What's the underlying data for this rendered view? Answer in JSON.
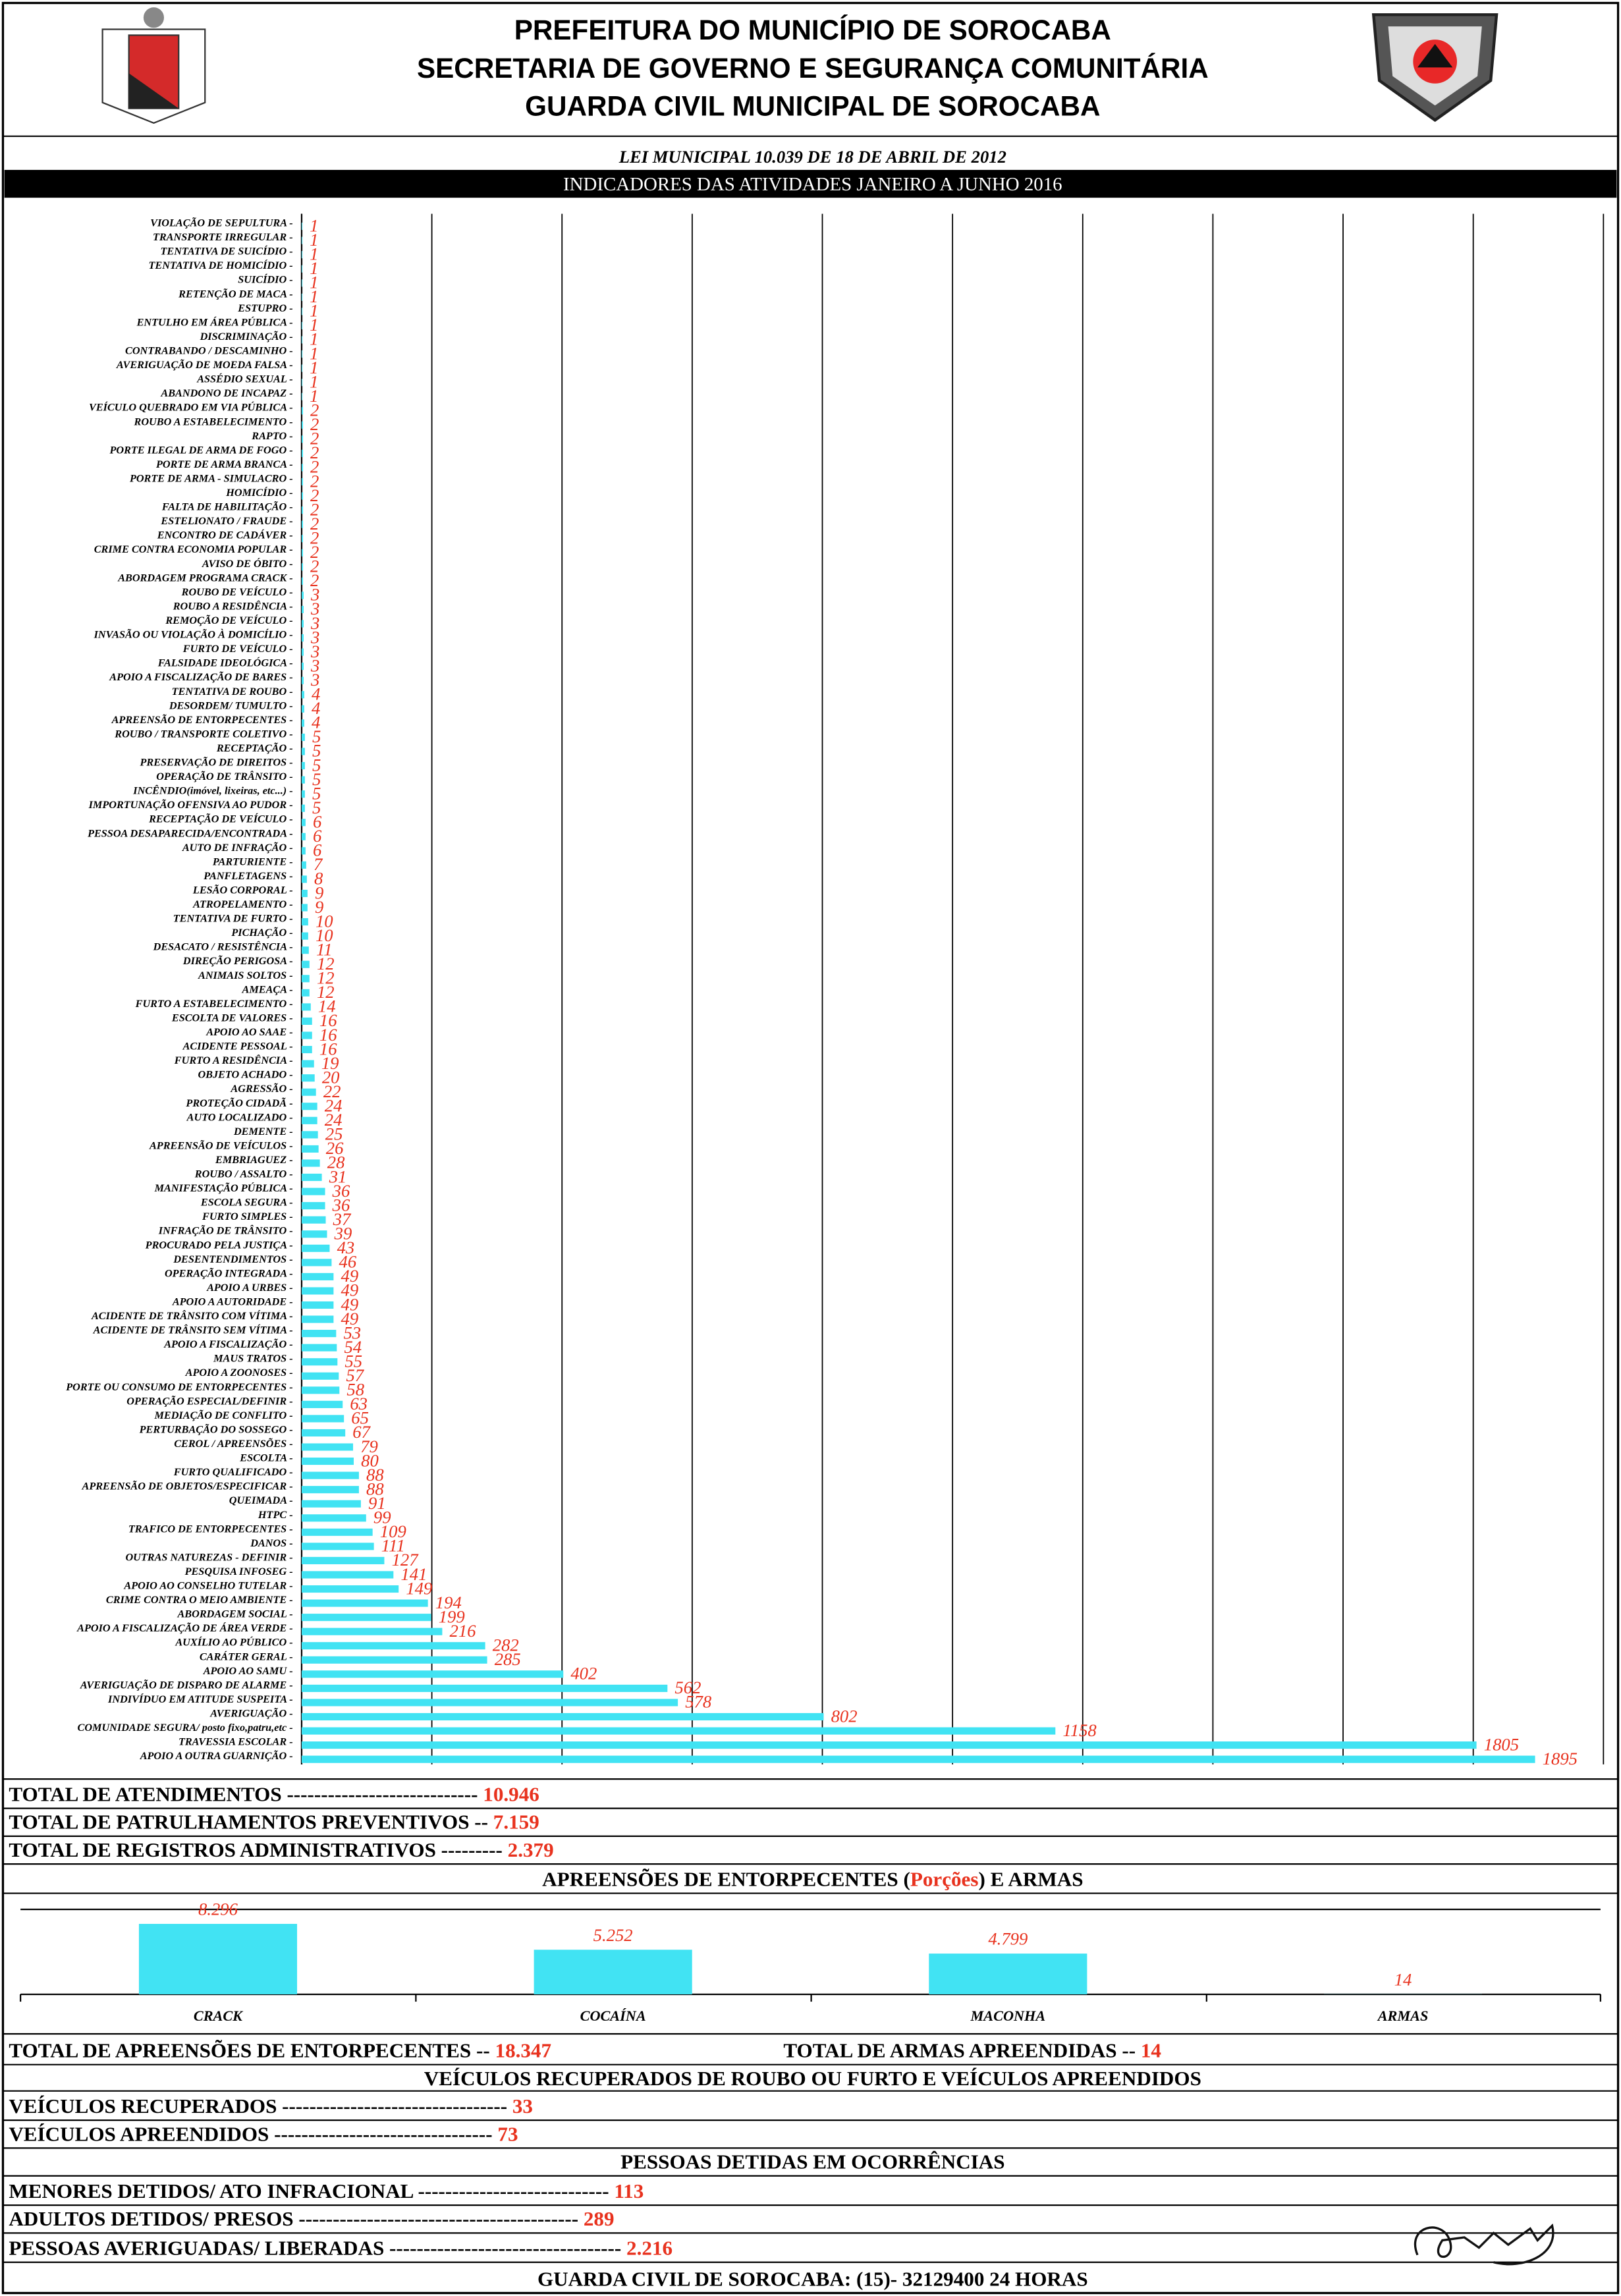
{
  "header": {
    "lines": [
      "PREFEITURA DO MUNICÍPIO DE SOROCABA",
      "SECRETARIA DE GOVERNO E SEGURANÇA COMUNITÁRIA",
      "GUARDA CIVIL MUNICIPAL DE SOROCABA"
    ],
    "law": "LEI MUNICIPAL 10.039 DE 18 DE ABRIL DE 2012",
    "banner": "INDICADORES DAS ATIVIDADES JANEIRO A JUNHO 2016"
  },
  "chart_data": [
    {
      "type": "hbar",
      "color": "#41e3f3",
      "label_color": "#e8321e",
      "xlim": [
        0,
        2000
      ],
      "xticks": [
        0,
        200,
        400,
        600,
        800,
        1000,
        1200,
        1400,
        1600,
        1800,
        2000
      ],
      "grid": true,
      "categories": [
        "VIOLAÇÃO DE SEPULTURA -",
        "TRANSPORTE IRREGULAR -",
        "TENTATIVA DE SUICÍDIO -",
        "TENTATIVA DE HOMICÍDIO -",
        "SUICÍDIO -",
        "RETENÇÃO DE MACA -",
        "ESTUPRO -",
        "ENTULHO EM ÁREA PÚBLICA -",
        "DISCRIMINAÇÃO -",
        "CONTRABANDO / DESCAMINHO -",
        "AVERIGUAÇÃO DE MOEDA FALSA -",
        "ASSÉDIO SEXUAL -",
        "ABANDONO DE INCAPAZ -",
        "VEÍCULO QUEBRADO EM VIA PÚBLICA -",
        "ROUBO A ESTABELECIMENTO -",
        "RAPTO -",
        "PORTE ILEGAL DE ARMA DE FOGO -",
        "PORTE DE ARMA BRANCA -",
        "PORTE DE ARMA - SIMULACRO -",
        "HOMICÍDIO -",
        "FALTA DE HABILITAÇÃO -",
        "ESTELIONATO / FRAUDE -",
        "ENCONTRO DE CADÁVER -",
        "CRIME CONTRA ECONOMIA POPULAR -",
        "AVISO DE ÓBITO -",
        "ABORDAGEM PROGRAMA CRACK -",
        "ROUBO DE VEÍCULO -",
        "ROUBO A RESIDÊNCIA -",
        "REMOÇÃO DE VEÍCULO -",
        "INVASÃO OU VIOLAÇÃO À DOMICÍLIO -",
        "FURTO DE VEÍCULO -",
        "FALSIDADE IDEOLÓGICA -",
        "APOIO A FISCALIZAÇÃO DE BARES -",
        "TENTATIVA DE ROUBO -",
        "DESORDEM/ TUMULTO -",
        "APREENSÃO DE ENTORPECENTES -",
        "ROUBO / TRANSPORTE COLETIVO -",
        "RECEPTAÇÃO -",
        "PRESERVAÇÃO DE DIREITOS -",
        "OPERAÇÃO DE TRÂNSITO -",
        "INCÊNDIO(imóvel, lixeiras, etc...) -",
        "IMPORTUNAÇÃO OFENSIVA AO PUDOR -",
        "RECEPTAÇÃO DE VEÍCULO -",
        "PESSOA DESAPARECIDA/ENCONTRADA -",
        "AUTO DE INFRAÇÃO -",
        "PARTURIENTE -",
        "PANFLETAGENS -",
        "LESÃO CORPORAL -",
        "ATROPELAMENTO -",
        "TENTATIVA DE FURTO -",
        "PICHAÇÃO -",
        "DESACATO / RESISTÊNCIA -",
        "DIREÇÃO PERIGOSA -",
        "ANIMAIS SOLTOS -",
        "AMEAÇA -",
        "FURTO A ESTABELECIMENTO -",
        "ESCOLTA DE VALORES -",
        "APOIO AO SAAE -",
        "ACIDENTE PESSOAL -",
        "FURTO A RESIDÊNCIA -",
        "OBJETO ACHADO -",
        "AGRESSÃO -",
        "PROTEÇÃO CIDADÃ -",
        "AUTO LOCALIZADO -",
        "DEMENTE -",
        "APREENSÃO DE VEÍCULOS -",
        "EMBRIAGUEZ -",
        "ROUBO / ASSALTO -",
        "MANIFESTAÇÃO PÚBLICA -",
        "ESCOLA SEGURA -",
        "FURTO SIMPLES -",
        "INFRAÇÃO DE TRÂNSITO -",
        "PROCURADO PELA JUSTIÇA -",
        "DESENTENDIMENTOS -",
        "OPERAÇÃO INTEGRADA -",
        "APOIO A URBES -",
        "APOIO A AUTORIDADE -",
        "ACIDENTE DE TRÂNSITO COM VÍTIMA -",
        "ACIDENTE DE TRÂNSITO SEM VÍTIMA -",
        "APOIO A FISCALIZAÇÃO -",
        "MAUS TRATOS -",
        "APOIO A ZOONOSES -",
        "PORTE OU CONSUMO DE ENTORPECENTES -",
        "OPERAÇÃO ESPECIAL/DEFINIR -",
        "MEDIAÇÃO DE CONFLITO -",
        "PERTURBAÇÃO DO SOSSEGO -",
        "CEROL / APREENSÕES -",
        "ESCOLTA -",
        "FURTO QUALIFICADO -",
        "APREENSÃO DE OBJETOS/ESPECIFICAR -",
        "QUEIMADA -",
        "HTPC -",
        "TRAFICO DE ENTORPECENTES -",
        "DANOS -",
        "OUTRAS NATUREZAS - DEFINIR -",
        "PESQUISA INFOSEG -",
        "APOIO AO CONSELHO TUTELAR -",
        "CRIME CONTRA O MEIO AMBIENTE -",
        "ABORDAGEM SOCIAL -",
        "APOIO A FISCALIZAÇÃO DE ÁREA VERDE -",
        "AUXÍLIO AO PÚBLICO -",
        "CARÁTER GERAL -",
        "APOIO AO SAMU -",
        "AVERIGUAÇÃO DE DISPARO DE ALARME -",
        "INDIVÍDUO EM ATITUDE SUSPEITA -",
        "AVERIGUAÇÃO -",
        "COMUNIDADE SEGURA/ posto fixo,patru,etc -",
        "TRAVESSIA ESCOLAR -",
        "APOIO A OUTRA GUARNIÇÃO -"
      ],
      "values": [
        1,
        1,
        1,
        1,
        1,
        1,
        1,
        1,
        1,
        1,
        1,
        1,
        1,
        2,
        2,
        2,
        2,
        2,
        2,
        2,
        2,
        2,
        2,
        2,
        2,
        2,
        3,
        3,
        3,
        3,
        3,
        3,
        3,
        4,
        4,
        4,
        5,
        5,
        5,
        5,
        5,
        5,
        6,
        6,
        6,
        7,
        8,
        9,
        9,
        10,
        10,
        11,
        12,
        12,
        12,
        14,
        16,
        16,
        16,
        19,
        20,
        22,
        24,
        24,
        25,
        26,
        28,
        31,
        36,
        36,
        37,
        39,
        43,
        46,
        49,
        49,
        49,
        49,
        53,
        54,
        55,
        57,
        58,
        63,
        65,
        67,
        79,
        80,
        88,
        88,
        91,
        99,
        109,
        111,
        127,
        141,
        149,
        194,
        199,
        216,
        282,
        285,
        402,
        562,
        578,
        802,
        1158,
        1805,
        1895
      ]
    },
    {
      "type": "bar",
      "color": "#41e3f3",
      "label_color": "#e8321e",
      "ylim": [
        0,
        10000
      ],
      "yticks": [
        0,
        10000
      ],
      "grid": true,
      "categories": [
        "CRACK",
        "COCAÍNA",
        "MACONHA",
        "ARMAS"
      ],
      "values": [
        8296,
        5252,
        4799,
        14
      ],
      "value_labels": [
        "8.296",
        "5.252",
        "4.799",
        "14"
      ]
    }
  ],
  "totals": [
    {
      "label": "TOTAL DE ATENDIMENTOS       ---------------------------- ",
      "value": "10.946"
    },
    {
      "label": "TOTAL DE PATRULHAMENTOS PREVENTIVOS -- ",
      "value": "7.159"
    },
    {
      "label": "TOTAL DE REGISTROS ADMINISTRATIVOS    --------- ",
      "value": "2.379"
    }
  ],
  "seizures": {
    "title_pre": "APREENSÕES DE ENTORPECENTES (",
    "title_red": "Porções",
    "title_post": ")  E ARMAS",
    "totals": [
      {
        "label": "TOTAL DE APREENSÕES DE ENTORPECENTES -- ",
        "value": "18.347"
      },
      {
        "label": "TOTAL DE ARMAS APREENDIDAS  -- ",
        "value": "14"
      }
    ]
  },
  "vehicles": {
    "title": "VEÍCULOS RECUPERADOS DE ROUBO OU FURTO E VEÍCULOS APREENDIDOS",
    "rows": [
      {
        "label": "VEÍCULOS RECUPERADOS --------------------------------- ",
        "value": "33"
      },
      {
        "label": "VEÍCULOS APREENDIDOS -------------------------------- ",
        "value": "73"
      }
    ]
  },
  "persons": {
    "title": "PESSOAS DETIDAS EM OCORRÊNCIAS",
    "rows": [
      {
        "label": "MENORES DETIDOS/ ATO INFRACIONAL ---------------------------- ",
        "value": "113"
      },
      {
        "label": "ADULTOS DETIDOS/ PRESOS ----------------------------------------- ",
        "value": "289"
      },
      {
        "label": "PESSOAS AVERIGUADAS/ LIBERADAS ---------------------------------- ",
        "value": "2.216"
      }
    ]
  },
  "footer": "GUARDA CIVIL DE SOROCABA: (15)- 32129400  24 HORAS"
}
